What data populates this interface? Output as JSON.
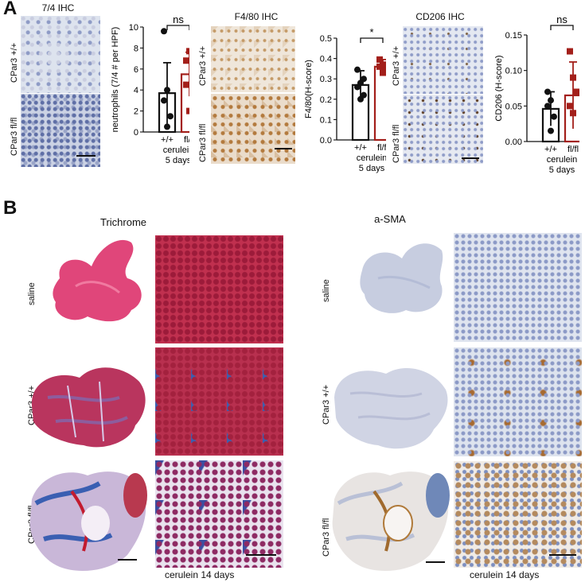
{
  "panel_a": {
    "letter": "A",
    "ihc": [
      {
        "title": "7/4 IHC",
        "rows": [
          "CPar3 +/+",
          "CPar3 fl/fl"
        ]
      },
      {
        "title": "F4/80 IHC",
        "rows": [
          "CPar3 +/+",
          "CPar3 fl/fl"
        ]
      },
      {
        "title": "CD206 IHC",
        "rows": [
          "CPar3 +/+",
          "CPar3 fl/fl"
        ]
      }
    ],
    "treatment_lines": [
      "cerulein",
      "5 days"
    ]
  },
  "panel_b": {
    "letter": "B",
    "stains": [
      "Trichrome",
      "a-SMA"
    ],
    "rows": [
      "saline",
      "CPar3 +/+",
      "CPar3 fl/fl"
    ],
    "bottom_label": "cerulein 14 days"
  },
  "colors": {
    "wt": "#111111",
    "ko": "#a31f1a"
  },
  "chart_data": [
    {
      "type": "bar",
      "categories": [
        "+/+",
        "fl/fl"
      ],
      "ylabel": "neutrophils (7/4 # per HPF)",
      "ylim": [
        0,
        10
      ],
      "yticks": [
        0,
        2,
        4,
        6,
        8,
        10
      ],
      "values": [
        3.7,
        5.5
      ],
      "errors": [
        2.9,
        2.1
      ],
      "points": [
        [
          9.6,
          0.5,
          1.5,
          3.0,
          4.0
        ],
        [
          4.5,
          2.0,
          4.4,
          6.8,
          7.7
        ]
      ],
      "significance": "ns"
    },
    {
      "type": "bar",
      "categories": [
        "+/+",
        "fl/fl"
      ],
      "ylabel": "F4/80(H-score)",
      "ylim": [
        0,
        0.5
      ],
      "yticks": [
        0.0,
        0.1,
        0.2,
        0.3,
        0.4,
        0.5
      ],
      "values": [
        0.27,
        0.36
      ],
      "errors": [
        0.07,
        0.035
      ],
      "points": [
        [
          0.345,
          0.2,
          0.22,
          0.26,
          0.28,
          0.3
        ],
        [
          0.395,
          0.33,
          0.34,
          0.36,
          0.37
        ]
      ],
      "significance": "*"
    },
    {
      "type": "bar",
      "categories": [
        "+/+",
        "fl/fl"
      ],
      "ylabel": "CD206 (H-score)",
      "ylim": [
        0,
        0.15
      ],
      "yticks": [
        0.0,
        0.05,
        0.1,
        0.15
      ],
      "values": [
        0.046,
        0.065
      ],
      "errors": [
        0.024,
        0.047
      ],
      "points": [
        [
          0.07,
          0.015,
          0.035,
          0.05,
          0.058
        ],
        [
          0.127,
          0.09,
          0.07,
          0.05,
          0.04
        ]
      ],
      "significance": "ns"
    }
  ]
}
